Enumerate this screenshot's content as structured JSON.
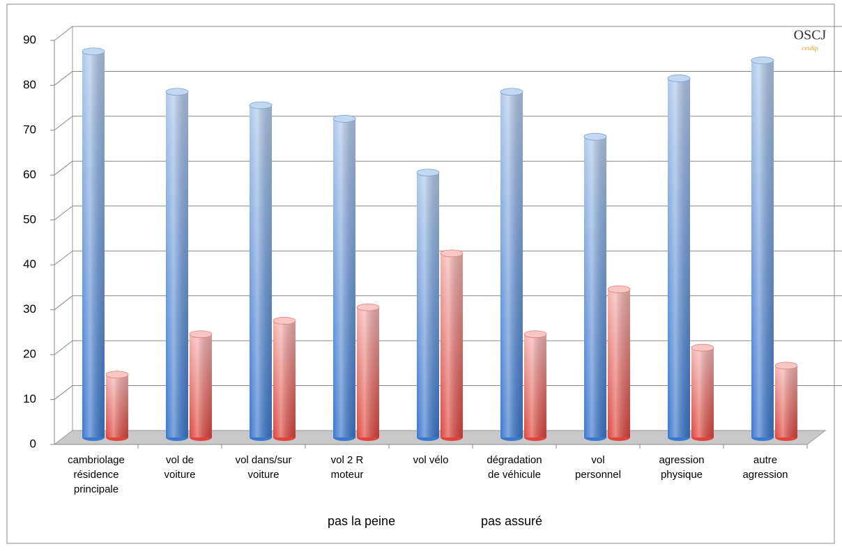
{
  "chart_data": {
    "type": "bar3d",
    "categories": [
      "cambriolage\nrésidence\nprincipale",
      "vol de\nvoiture",
      "vol dans/sur\nvoiture",
      "vol 2 R\nmoteur",
      "vol vélo",
      "dégradation\nde véhicule",
      "vol\npersonnel",
      "agression\nphysique",
      "autre\nagression"
    ],
    "series": [
      {
        "name": "pas la peine",
        "color": "#3a78cf",
        "values": [
          86,
          77,
          74,
          71,
          59,
          77,
          67,
          80,
          84
        ]
      },
      {
        "name": "pas assuré",
        "color": "#e0443c",
        "values": [
          14,
          23,
          26,
          29,
          41,
          23,
          33,
          20,
          16
        ]
      }
    ],
    "ylim": [
      0,
      90
    ],
    "yticks": [
      0,
      10,
      20,
      30,
      40,
      50,
      60,
      70,
      80,
      90
    ],
    "grid": true,
    "annotations": [
      "OSCJ",
      "cesdip"
    ]
  }
}
